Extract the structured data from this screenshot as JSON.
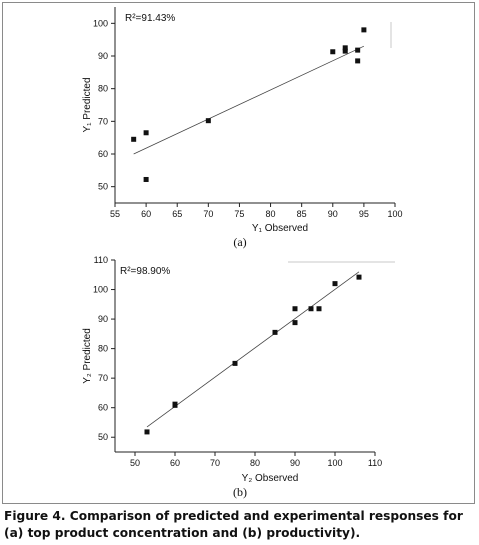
{
  "figure": {
    "caption": "Figure 4. Comparison of predicted and experimental responses for (a) top product concentration and (b) productivity)."
  },
  "chart_data": [
    {
      "type": "scatter",
      "panel_label": "(a)",
      "annotation": "R²=91.43%",
      "xlabel": "Y₁ Observed",
      "ylabel": "Y₁ Predicted",
      "xlim": [
        55,
        100
      ],
      "ylim": [
        45,
        105
      ],
      "xticks": [
        55,
        60,
        65,
        70,
        75,
        80,
        85,
        90,
        95,
        100
      ],
      "yticks": [
        50,
        60,
        70,
        80,
        90,
        100
      ],
      "points": [
        [
          58,
          64.5
        ],
        [
          60,
          66.5
        ],
        [
          60,
          52.2
        ],
        [
          70,
          70.2
        ],
        [
          90,
          91.3
        ],
        [
          92,
          91.5
        ],
        [
          92,
          92.5
        ],
        [
          94,
          91.8
        ],
        [
          94,
          88.5
        ],
        [
          95,
          98
        ]
      ],
      "fit_line": [
        [
          58,
          60
        ],
        [
          95,
          93
        ]
      ],
      "grid": false
    },
    {
      "type": "scatter",
      "panel_label": "(b)",
      "annotation": "R²=98.90%",
      "xlabel": "Y₂ Observed",
      "ylabel": "Y₂ Predicted",
      "xlim": [
        45,
        110
      ],
      "ylim": [
        45,
        110
      ],
      "xticks": [
        50,
        60,
        70,
        80,
        90,
        100,
        110
      ],
      "yticks": [
        50,
        60,
        70,
        80,
        90,
        100,
        110
      ],
      "points": [
        [
          53,
          51.8
        ],
        [
          60,
          60.8
        ],
        [
          60,
          61.2
        ],
        [
          75,
          75
        ],
        [
          85,
          85.5
        ],
        [
          90,
          93.5
        ],
        [
          90,
          88.8
        ],
        [
          94,
          93.5
        ],
        [
          96,
          93.5
        ],
        [
          100,
          102
        ],
        [
          106,
          104.2
        ]
      ],
      "fit_line": [
        [
          53,
          53.5
        ],
        [
          106,
          106
        ]
      ],
      "grid": false
    }
  ]
}
